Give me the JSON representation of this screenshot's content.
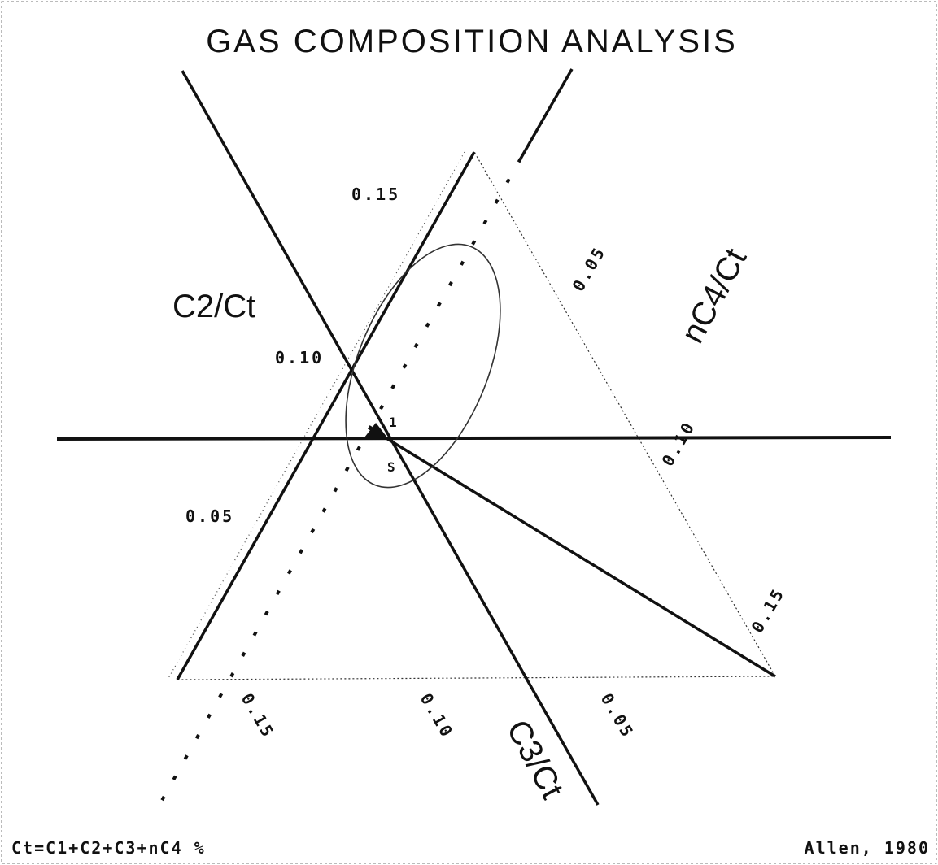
{
  "title": "GAS COMPOSITION ANALYSIS",
  "axes": [
    {
      "label": "C2/Ct",
      "ticks": [
        "0.15",
        "0.10",
        "0.05"
      ]
    },
    {
      "label": "nC4/Ct",
      "ticks": [
        "0.05",
        "0.10",
        "0.15"
      ]
    },
    {
      "label": "C3/Ct",
      "ticks": [
        "0.15",
        "0.10",
        "0.05"
      ]
    }
  ],
  "point_labels": [
    "1",
    "S"
  ],
  "footer": {
    "left": "Ct=C1+C2+C3+nC4 %",
    "right": "Allen, 1980"
  }
}
